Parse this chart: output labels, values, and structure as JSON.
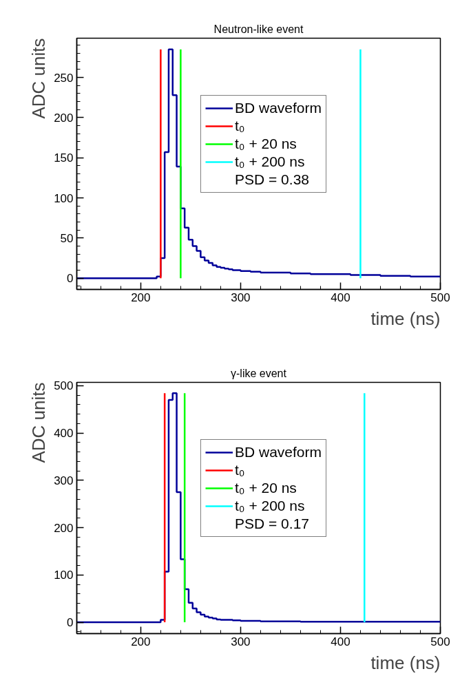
{
  "chart_data": [
    {
      "type": "step",
      "title": "Neutron-like event",
      "xlabel": "time (ns)",
      "ylabel": "ADC units",
      "xlim": [
        136,
        500
      ],
      "ylim": [
        -14,
        299
      ],
      "xticks": [
        200,
        300,
        400,
        500
      ],
      "yticks": [
        0,
        50,
        100,
        150,
        200,
        250
      ],
      "legend": "top",
      "series": [
        {
          "name": "BD waveform",
          "color": "#000099",
          "x": [
            136,
            216,
            220,
            224,
            228,
            232,
            236,
            240,
            244,
            248,
            252,
            256,
            260,
            264,
            268,
            272,
            276,
            280,
            284,
            288,
            292,
            296,
            300,
            310,
            320,
            335,
            350,
            370,
            390,
            410,
            440,
            470,
            500
          ],
          "values": [
            0,
            2,
            25,
            157,
            285,
            228,
            139,
            87,
            63,
            48,
            40,
            34,
            26,
            22,
            19,
            16,
            14,
            13,
            12,
            11,
            10,
            10,
            9,
            8,
            7,
            7,
            6,
            5,
            5,
            4,
            3,
            2,
            2
          ]
        },
        {
          "name": "t₀",
          "type": "line",
          "color": "#ff0000",
          "x": [
            220,
            220
          ],
          "values": [
            0,
            285
          ]
        },
        {
          "name": "t₀ + 20 ns",
          "type": "line",
          "color": "#00ff00",
          "x": [
            240,
            240
          ],
          "values": [
            0,
            285
          ]
        },
        {
          "name": "t₀ + 200 ns",
          "type": "line",
          "color": "#00ffff",
          "x": [
            420,
            420
          ],
          "values": [
            0,
            285
          ]
        }
      ],
      "annotations": [
        "PSD = 0.38"
      ]
    },
    {
      "type": "step",
      "title": "γ-like event",
      "xlabel": "time (ns)",
      "ylabel": "ADC units",
      "xlim": [
        136,
        500
      ],
      "ylim": [
        -24,
        507
      ],
      "xticks": [
        200,
        300,
        400,
        500
      ],
      "yticks": [
        0,
        100,
        200,
        300,
        400,
        500
      ],
      "legend": "top",
      "series": [
        {
          "name": "BD waveform",
          "color": "#000099",
          "x": [
            136,
            220,
            224,
            228,
            232,
            236,
            240,
            244,
            248,
            252,
            256,
            260,
            264,
            268,
            272,
            276,
            280,
            284,
            292,
            300,
            320,
            360,
            420,
            500
          ],
          "values": [
            0,
            5,
            107,
            470,
            484,
            275,
            133,
            70,
            41,
            29,
            21,
            16,
            12,
            10,
            8,
            6,
            5,
            5,
            4,
            3,
            2,
            1,
            1,
            1
          ]
        },
        {
          "name": "t₀",
          "type": "line",
          "color": "#ff0000",
          "x": [
            224,
            224
          ],
          "values": [
            0,
            484
          ]
        },
        {
          "name": "t₀ + 20 ns",
          "type": "line",
          "color": "#00ff00",
          "x": [
            244,
            244
          ],
          "values": [
            0,
            484
          ]
        },
        {
          "name": "t₀ + 200 ns",
          "type": "line",
          "color": "#00ffff",
          "x": [
            424,
            424
          ],
          "values": [
            0,
            484
          ]
        }
      ],
      "annotations": [
        "PSD = 0.17"
      ]
    }
  ]
}
